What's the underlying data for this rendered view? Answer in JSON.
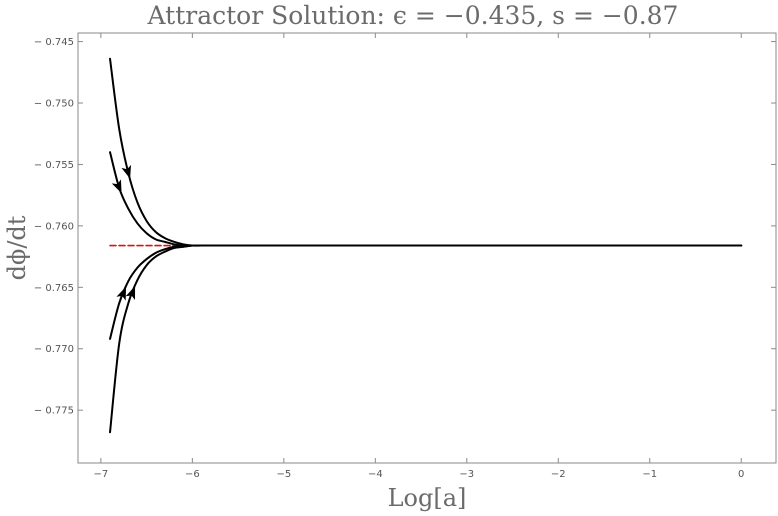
{
  "chart_data": {
    "type": "line",
    "title": "Attractor Solution: ϵ = −0.435, s = −0.87",
    "xlabel": "Log[a]",
    "ylabel": "dϕ/dt",
    "xlim": [
      -7.25,
      0.38
    ],
    "ylim": [
      -0.7793,
      -0.7443
    ],
    "x_ticks": [
      -7,
      -6,
      -5,
      -4,
      -3,
      -2,
      -1,
      0
    ],
    "x_tick_labels": [
      "−7",
      "−6",
      "−5",
      "−4",
      "−3",
      "−2",
      "−1",
      "0"
    ],
    "y_ticks": [
      -0.745,
      -0.75,
      -0.755,
      -0.76,
      -0.765,
      -0.77,
      -0.775
    ],
    "y_tick_labels": [
      "− 0.745",
      "− 0.750",
      "− 0.755",
      "− 0.760",
      "− 0.765",
      "− 0.770",
      "− 0.775"
    ],
    "grid": false,
    "legend": "none",
    "attractor_value": -0.7616,
    "series": [
      {
        "color": "#000000",
        "style": "solid",
        "width": 2,
        "x": [
          -6.9,
          -6.8,
          -6.7,
          -6.6,
          -6.5,
          -6.4,
          -6.3,
          -6.2,
          -6.1,
          -6.0,
          -5.9,
          -5.8,
          -5.7,
          0.0
        ],
        "y": [
          -0.7464,
          -0.7521,
          -0.7557,
          -0.7581,
          -0.7596,
          -0.7605,
          -0.761,
          -0.7613,
          -0.7615,
          -0.7616,
          -0.7616,
          -0.7616,
          -0.7616,
          -0.7616
        ],
        "arrow_at_x": -6.7
      },
      {
        "color": "#000000",
        "style": "solid",
        "width": 2,
        "x": [
          -6.9,
          -6.8,
          -6.7,
          -6.6,
          -6.5,
          -6.4,
          -6.3,
          -6.2,
          -6.1,
          -6.0,
          -5.9,
          -5.8,
          -5.7,
          0.0
        ],
        "y": [
          -0.754,
          -0.7569,
          -0.7586,
          -0.7598,
          -0.7606,
          -0.7611,
          -0.7613,
          -0.7615,
          -0.7616,
          -0.7616,
          -0.7616,
          -0.7616,
          -0.7616,
          -0.7616
        ],
        "arrow_at_x": -6.8
      },
      {
        "color": "#000000",
        "style": "solid",
        "width": 2,
        "x": [
          -6.9,
          -6.8,
          -6.7,
          -6.6,
          -6.5,
          -6.4,
          -6.3,
          -6.2,
          -6.1,
          -6.0,
          -5.9,
          -5.8,
          -5.7,
          0.0
        ],
        "y": [
          -0.7692,
          -0.7663,
          -0.7645,
          -0.7634,
          -0.7627,
          -0.7622,
          -0.7619,
          -0.7617,
          -0.7617,
          -0.7616,
          -0.7616,
          -0.7616,
          -0.7616,
          -0.7616
        ],
        "arrow_at_x": -6.75
      },
      {
        "color": "#000000",
        "style": "solid",
        "width": 2,
        "x": [
          -6.9,
          -6.8,
          -6.7,
          -6.6,
          -6.5,
          -6.4,
          -6.3,
          -6.2,
          -6.1,
          -6.0,
          -5.9,
          -5.8,
          -5.7,
          0.0
        ],
        "y": [
          -0.7768,
          -0.7696,
          -0.7663,
          -0.7644,
          -0.7632,
          -0.7625,
          -0.7621,
          -0.7618,
          -0.7617,
          -0.7616,
          -0.7616,
          -0.7616,
          -0.7616,
          -0.7616
        ],
        "arrow_at_x": -6.65
      },
      {
        "color": "#dd1111",
        "style": "dashed",
        "width": 1.6,
        "x": [
          -6.9,
          -5.75
        ],
        "y": [
          -0.7616,
          -0.7616
        ]
      }
    ]
  }
}
